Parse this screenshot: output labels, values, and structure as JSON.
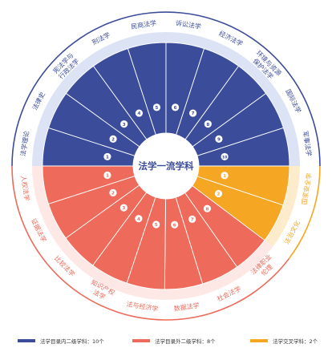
{
  "center_title": "法学一流学科",
  "colors": {
    "inner": "#3b4c9a",
    "outer": "#ee6a5a",
    "cross": "#f5a623",
    "ring_blue": "#dce3f5",
    "ring_red": "#fde8e6",
    "ring_orange": "#fdeccc",
    "arc_blue": "#3b4c9a",
    "arc_red": "#ee6a5a",
    "arc_orange": "#f5a623"
  },
  "groups": [
    {
      "key": "inner",
      "legend": "法学目录内二级学科：10个",
      "items": [
        {
          "label": "法学理论",
          "num": "1"
        },
        {
          "label": "法律史",
          "num": "2"
        },
        {
          "label": "宪法学与\n行政法学",
          "num": "3"
        },
        {
          "label": "刑法学",
          "num": "4"
        },
        {
          "label": "民商法学",
          "num": "5"
        },
        {
          "label": "诉讼法学",
          "num": "6"
        },
        {
          "label": "经济法学",
          "num": "7"
        },
        {
          "label": "环境与资源\n保护法学",
          "num": "8"
        },
        {
          "label": "国际法学",
          "num": "9"
        },
        {
          "label": "军事法学",
          "num": "10"
        }
      ]
    },
    {
      "key": "cross",
      "legend": "法学交叉学科：2个",
      "items": [
        {
          "label": "国家安全学",
          "num": "1"
        },
        {
          "label": "法治文化",
          "num": "2"
        }
      ]
    },
    {
      "key": "outer",
      "legend": "法学目录外二级学科：8个",
      "items": [
        {
          "label": "法律职业\n伦理",
          "num": "8"
        },
        {
          "label": "社会法学",
          "num": "7"
        },
        {
          "label": "数据法学",
          "num": "6"
        },
        {
          "label": "法与经济学",
          "num": "5"
        },
        {
          "label": "知识产权\n法学",
          "num": "4"
        },
        {
          "label": "比较法学",
          "num": "3"
        },
        {
          "label": "证据法学",
          "num": "2"
        },
        {
          "label": "人权法学",
          "num": "1"
        }
      ]
    }
  ]
}
